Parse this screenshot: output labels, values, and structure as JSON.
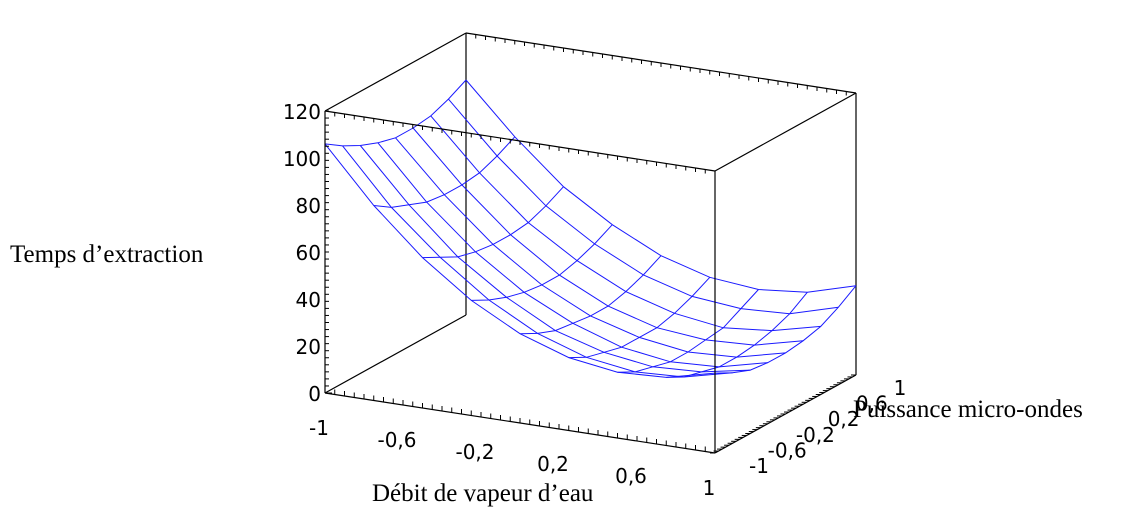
{
  "chart_data": {
    "type": "surface",
    "title": "",
    "xlabel": "Débit de vapeur d’eau",
    "ylabel": "Puissance micro-ondes",
    "zlabel": "Temps d’extraction",
    "x_ticks": [
      "-1",
      "-0,6",
      "-0,2",
      "0,2",
      "0,6",
      "1"
    ],
    "y_ticks": [
      "-1",
      "-0,6",
      "-0,2",
      "0,2",
      "0,6",
      "1"
    ],
    "z_ticks": [
      "0",
      "20",
      "40",
      "60",
      "80",
      "100",
      "120"
    ],
    "xlim": [
      -1,
      1
    ],
    "ylim": [
      -1,
      1
    ],
    "zlim": [
      0,
      120
    ],
    "surface_color": "#1a1aff",
    "grid_x": [
      -1,
      -0.75,
      -0.5,
      -0.25,
      0,
      0.25,
      0.5,
      0.75,
      1
    ],
    "grid_y": [
      -1,
      -0.75,
      -0.5,
      -0.25,
      0,
      0.25,
      0.5,
      0.75,
      1
    ],
    "z": [
      [
        106,
        83,
        64,
        49,
        38,
        31,
        28,
        29,
        34
      ],
      [
        101,
        78,
        60,
        45,
        34,
        27,
        24,
        25,
        30
      ],
      [
        97,
        75,
        56,
        42,
        31,
        25,
        22,
        23,
        27
      ],
      [
        94,
        72,
        54,
        40,
        30,
        23,
        20,
        21,
        26
      ],
      [
        92,
        71,
        53,
        39,
        29,
        23,
        20,
        21,
        26
      ],
      [
        92,
        71,
        53,
        39,
        29,
        23,
        21,
        22,
        27
      ],
      [
        93,
        72,
        54,
        41,
        31,
        25,
        22,
        24,
        29
      ],
      [
        96,
        75,
        57,
        44,
        34,
        28,
        26,
        27,
        33
      ],
      [
        100,
        79,
        61,
        48,
        38,
        32,
        30,
        32,
        38
      ]
    ]
  }
}
